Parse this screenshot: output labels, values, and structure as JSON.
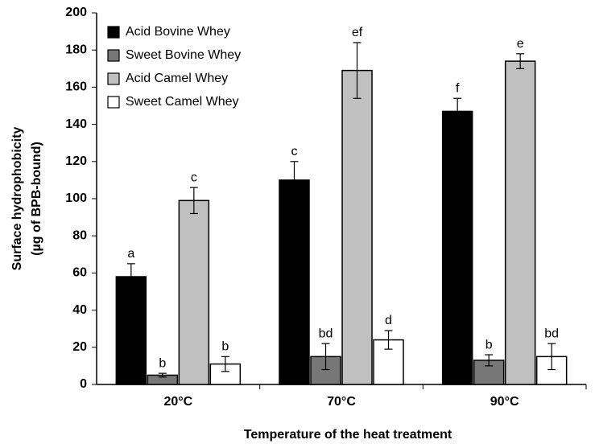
{
  "chart_data": {
    "type": "bar",
    "xlabel": "Temperature of the heat treatment",
    "ylabel": [
      "Surface hydrophobicity",
      "(µg of BPB-bound)"
    ],
    "categories": [
      "20°C",
      "70°C",
      "90°C"
    ],
    "series": [
      {
        "name": "Acid Bovine Whey",
        "color": "#000000",
        "values": [
          58,
          110,
          147
        ],
        "errors": [
          7,
          10,
          7
        ],
        "labels": [
          "a",
          "c",
          "f"
        ]
      },
      {
        "name": "Sweet Bovine Whey",
        "color": "#777777",
        "values": [
          5,
          15,
          13
        ],
        "errors": [
          1,
          7,
          3
        ],
        "labels": [
          "b",
          "bd",
          "b"
        ]
      },
      {
        "name": "Acid Camel Whey",
        "color": "#c0c0c0",
        "values": [
          99,
          169,
          174
        ],
        "errors": [
          7,
          15,
          4
        ],
        "labels": [
          "c",
          "ef",
          "e"
        ]
      },
      {
        "name": "Sweet Camel Whey",
        "color": "#ffffff",
        "values": [
          11,
          24,
          15
        ],
        "errors": [
          4,
          5,
          7
        ],
        "labels": [
          "b",
          "d",
          "bd"
        ]
      }
    ],
    "ylim": [
      0,
      200
    ],
    "yticks": [
      0,
      20,
      40,
      60,
      80,
      100,
      120,
      140,
      160,
      180,
      200
    ],
    "legend": "upper left"
  }
}
